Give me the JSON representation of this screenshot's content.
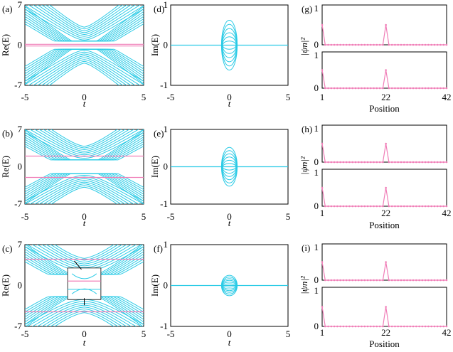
{
  "panel_labels": [
    "(a)",
    "(b)",
    "(c)",
    "(d)",
    "(e)",
    "(f)",
    "(g)",
    "(h)",
    "(i)"
  ],
  "colors": {
    "spectrum": "#2bcbe6",
    "edge_state": "#f07fb8",
    "frame": "#000000"
  },
  "chart_data": [
    {
      "id": "a",
      "type": "line",
      "ylabel": "Re(E)",
      "xlabel": "t",
      "xlim": [
        -5,
        5
      ],
      "ylim": [
        -7,
        7
      ],
      "xticks": [
        "-5",
        "0",
        "5"
      ],
      "yticks": [
        "-7",
        "0",
        "7"
      ],
      "edge_levels": [
        0.15,
        -0.15
      ]
    },
    {
      "id": "b",
      "type": "line",
      "ylabel": "Re(E)",
      "xlabel": "t",
      "xlim": [
        -5,
        5
      ],
      "ylim": [
        -7,
        7
      ],
      "xticks": [
        "-5",
        "0",
        "5"
      ],
      "yticks": [
        "-7",
        "0",
        "7"
      ],
      "edge_levels": [
        2.0,
        -2.0
      ]
    },
    {
      "id": "c",
      "type": "line",
      "ylabel": "Re(E)",
      "xlabel": "t",
      "xlim": [
        -5,
        5
      ],
      "ylim": [
        -7,
        7
      ],
      "xticks": [
        "-5",
        "0",
        "5"
      ],
      "yticks": [
        "-7",
        "0",
        "7"
      ],
      "edge_levels": [
        4.5,
        -4.5
      ],
      "has_inset": true
    },
    {
      "id": "d",
      "type": "line",
      "ylabel": "Im(E)",
      "xlabel": "t",
      "xlim": [
        -5,
        5
      ],
      "ylim": [
        -1,
        1
      ],
      "xticks": [
        "-5",
        "0",
        "5"
      ],
      "yticks": [
        "-1",
        "0",
        "1"
      ],
      "loop_max": 0.62
    },
    {
      "id": "e",
      "type": "line",
      "ylabel": "Im(E)",
      "xlabel": "t",
      "xlim": [
        -5,
        5
      ],
      "ylim": [
        -1,
        1
      ],
      "xticks": [
        "-5",
        "0",
        "5"
      ],
      "yticks": [
        "-1",
        "0",
        "1"
      ],
      "loop_max": 0.52
    },
    {
      "id": "f",
      "type": "line",
      "ylabel": "Im(E)",
      "xlabel": "t",
      "xlim": [
        -5,
        5
      ],
      "ylim": [
        -1,
        1
      ],
      "xticks": [
        "-5",
        "0",
        "5"
      ],
      "yticks": [
        "-1",
        "0",
        "1"
      ],
      "loop_max": 0.25
    },
    {
      "id": "g",
      "type": "line",
      "ylabel": "|ψn|²",
      "xlabel": "Position",
      "xlim": [
        1,
        42
      ],
      "ylim": [
        0,
        1
      ],
      "xticks": [
        "1",
        "22",
        "42"
      ],
      "yticks": [
        "0",
        "1"
      ],
      "peaks": [
        {
          "x": 1,
          "y": 0.5
        },
        {
          "x": 22,
          "y": 0.5
        }
      ]
    },
    {
      "id": "h",
      "type": "line",
      "ylabel": "|ψn|²",
      "xlabel": "Position",
      "xlim": [
        1,
        42
      ],
      "ylim": [
        0,
        1
      ],
      "xticks": [
        "1",
        "22",
        "42"
      ],
      "yticks": [
        "0",
        "1"
      ],
      "peaks": [
        {
          "x": 1,
          "y": 0.5
        },
        {
          "x": 22,
          "y": 0.5
        }
      ]
    },
    {
      "id": "i",
      "type": "line",
      "ylabel": "|ψn|²",
      "xlabel": "Position",
      "xlim": [
        1,
        42
      ],
      "ylim": [
        0,
        1
      ],
      "xticks": [
        "1",
        "22",
        "42"
      ],
      "yticks": [
        "0",
        "1"
      ],
      "peaks": [
        {
          "x": 1,
          "y": 0.5
        },
        {
          "x": 22,
          "y": 0.5
        }
      ]
    }
  ]
}
